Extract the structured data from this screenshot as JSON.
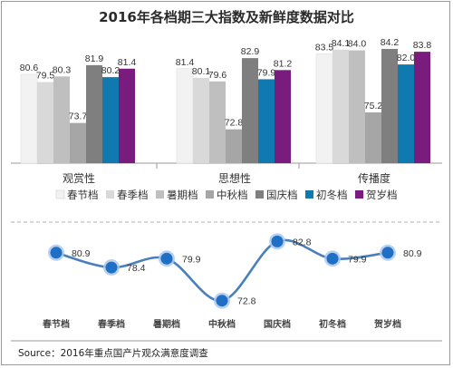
{
  "title": "2016年各档期三大指数及新鲜度数据对比",
  "source": "Source：2016年重点国产片观众满意度调查",
  "colors": {
    "春节档": "#f2f2f2",
    "春季档": "#d9d9d9",
    "暑期档": "#bfbfbf",
    "中秋档": "#a6a6a6",
    "国庆档": "#7f7f7f",
    "初冬档": "#1079b0",
    "贺岁档": "#7a1c7e",
    "line": "#4a7fbd",
    "marker": "#1f6fc4"
  },
  "chart_data": [
    {
      "type": "bar",
      "categories": [
        "观赏性",
        "思想性",
        "传播度"
      ],
      "series": [
        {
          "name": "春节档",
          "values": [
            80.6,
            81.4,
            83.5
          ]
        },
        {
          "name": "春季档",
          "values": [
            79.5,
            80.1,
            84.1
          ]
        },
        {
          "name": "暑期档",
          "values": [
            80.3,
            79.6,
            84.0
          ]
        },
        {
          "name": "中秋档",
          "values": [
            73.7,
            72.8,
            75.2
          ]
        },
        {
          "name": "国庆档",
          "values": [
            81.9,
            82.9,
            84.2
          ]
        },
        {
          "name": "初冬档",
          "values": [
            80.2,
            79.9,
            82.0
          ]
        },
        {
          "name": "贺岁档",
          "values": [
            81.4,
            81.2,
            83.8
          ]
        }
      ],
      "legend_position": "bottom",
      "grid": false,
      "ylim": [
        68,
        86
      ]
    },
    {
      "type": "line",
      "categories": [
        "春节档",
        "春季档",
        "暑期档",
        "中秋档",
        "国庆档",
        "初冬档",
        "贺岁档"
      ],
      "values": [
        80.9,
        78.4,
        79.9,
        72.8,
        82.8,
        79.9,
        80.9
      ],
      "grid": false,
      "ylim": [
        70,
        85
      ]
    }
  ]
}
